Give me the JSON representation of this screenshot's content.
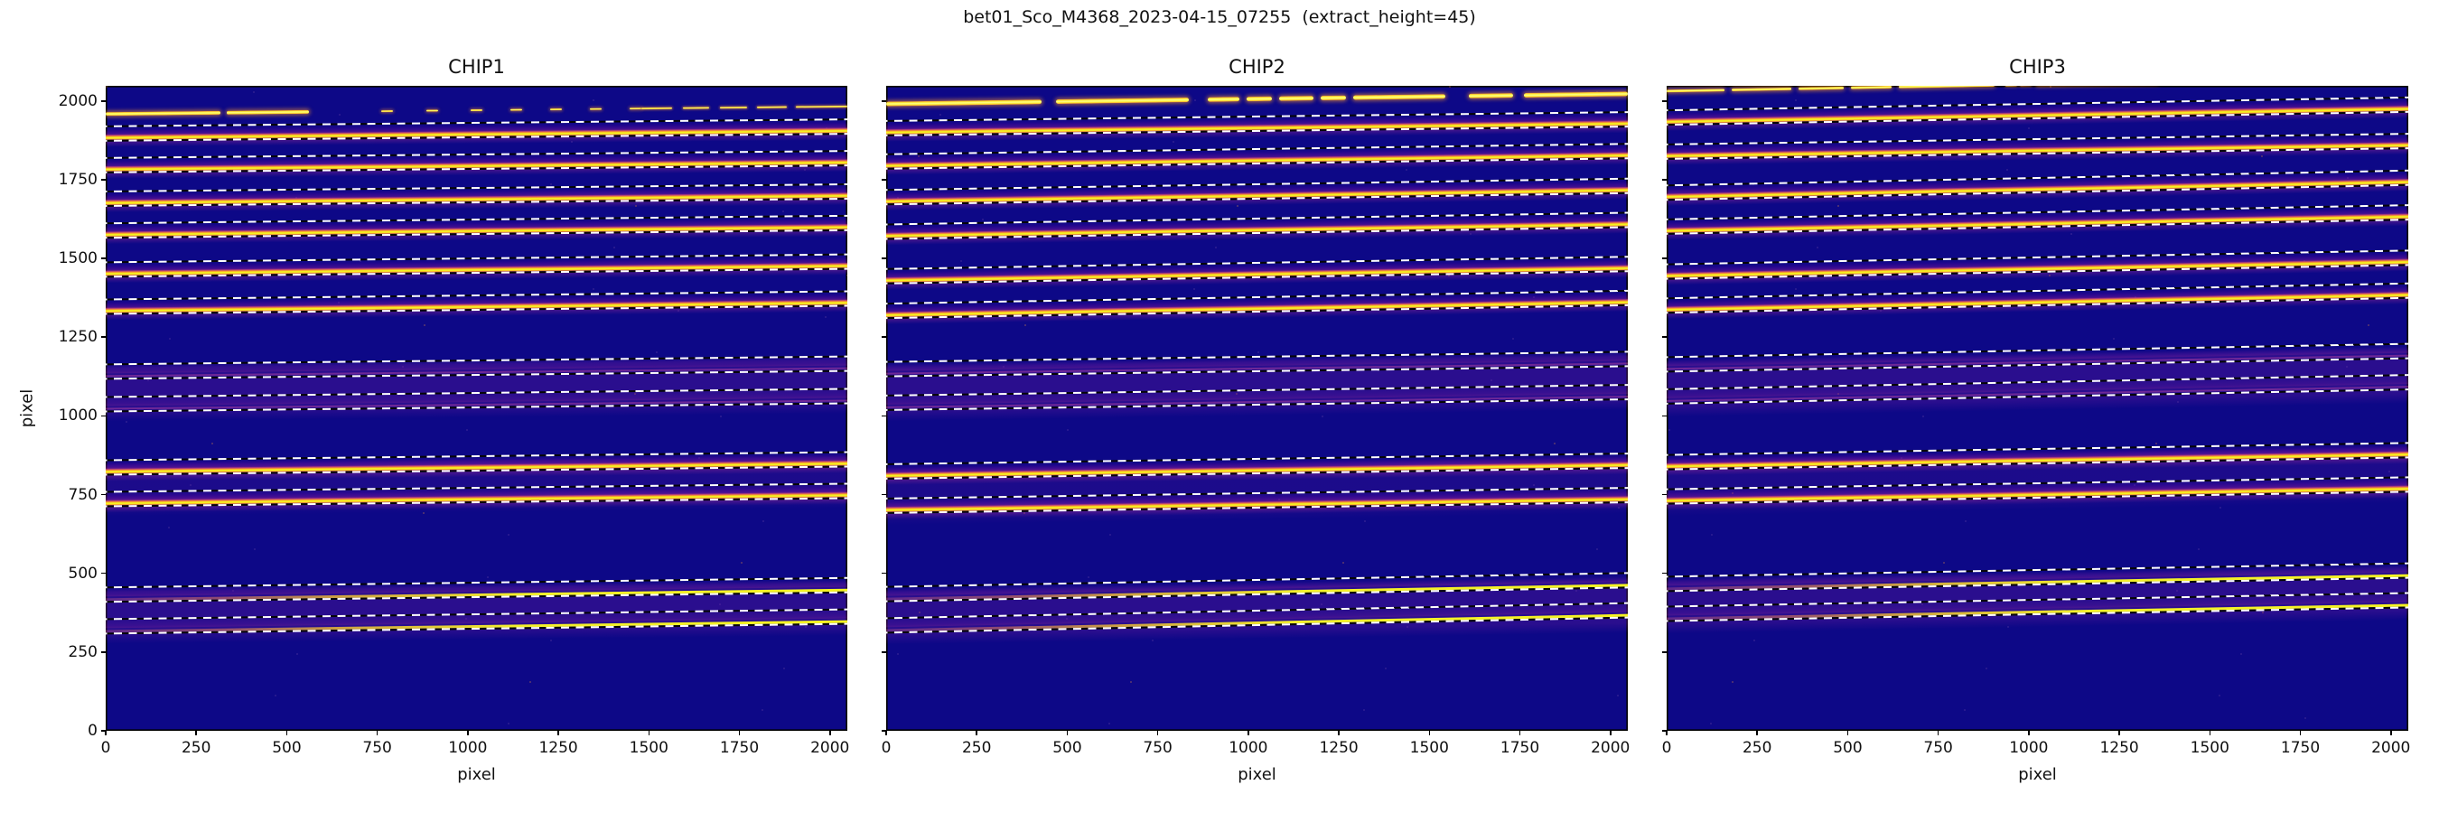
{
  "figure": {
    "title": "bet01_Sco_M4368_2023-04-15_07255  (extract_height=45)"
  },
  "chart_data": {
    "type": "heatmap",
    "description": "Three echelle spectrograph detector frames (2D images, plasma colormap) with traced spectral orders shown as bright solid bands and extraction-window boundaries overplotted as white dashed lines (extract_height = 45 detector pixels).",
    "extract_height": 45,
    "xlabel": "pixel",
    "ylabel": "pixel",
    "xlim": [
      0,
      2048
    ],
    "ylim": [
      0,
      2048
    ],
    "x_ticks": [
      0,
      250,
      500,
      750,
      1000,
      1250,
      1500,
      1750,
      2000
    ],
    "y_ticks": [
      0,
      250,
      500,
      750,
      1000,
      1250,
      1500,
      1750,
      2000
    ],
    "grid": false,
    "legend": null,
    "colors": {
      "background": "#0d0887",
      "scatter_haze": "#6c1c9e",
      "trace_core": "#f4f51e",
      "trace_edge": "#fb9b2d",
      "trace_rim": "#cc4778",
      "dash_white": "#ffffff",
      "dash_black": "#000000",
      "text": "#111111"
    },
    "panels": [
      {
        "title": "CHIP1",
        "show_y_tick_labels": true,
        "top_streak": {
          "y_left": 1958,
          "y_right": 1982,
          "thickness": 12,
          "segments": [
            [
              0,
              318
            ],
            [
              334,
              562
            ]
          ],
          "dots": [
            760,
            886,
            1008,
            1118,
            1228,
            1338,
            1448
          ],
          "thin_segments": [
            [
              1480,
              1564
            ],
            [
              1594,
              1666
            ],
            [
              1696,
              1772
            ],
            [
              1798,
              1882
            ],
            [
              1906,
              2048
            ]
          ]
        },
        "orders": [
          {
            "y_left": 1880,
            "y_right": 1902,
            "type": "bright"
          },
          {
            "y_left": 1780,
            "y_right": 1802,
            "type": "bright"
          },
          {
            "y_left": 1675,
            "y_right": 1698,
            "type": "bright"
          },
          {
            "y_left": 1572,
            "y_right": 1596,
            "type": "bright"
          },
          {
            "y_left": 1450,
            "y_right": 1475,
            "type": "bright"
          },
          {
            "y_left": 1332,
            "y_right": 1358,
            "type": "bright"
          },
          {
            "y_left": 1125,
            "y_right": 1150,
            "type": "faint"
          },
          {
            "y_left": 1020,
            "y_right": 1046,
            "type": "faint"
          },
          {
            "y_left": 820,
            "y_right": 846,
            "type": "bright"
          },
          {
            "y_left": 720,
            "y_right": 746,
            "type": "bright"
          },
          {
            "y_left": 418,
            "y_right": 448,
            "type": "semi"
          },
          {
            "y_left": 315,
            "y_right": 346,
            "type": "semi"
          }
        ],
        "scatter_bands": [
          {
            "y_top": 1178,
            "y_bottom": 995,
            "alpha": 0.3
          },
          {
            "y_top": 868,
            "y_bottom": 694,
            "alpha": 0.16
          },
          {
            "y_top": 468,
            "y_bottom": 290,
            "alpha": 0.3
          }
        ]
      },
      {
        "title": "CHIP2",
        "show_y_tick_labels": false,
        "top_streak": {
          "y_left": 1990,
          "y_right": 2022,
          "thickness": 14,
          "segments": [
            [
              0,
              430
            ],
            [
              470,
              835
            ],
            [
              888,
              975
            ],
            [
              995,
              1065
            ],
            [
              1085,
              1180
            ],
            [
              1200,
              1270
            ],
            [
              1290,
              1545
            ],
            [
              1610,
              1730
            ],
            [
              1760,
              2048
            ]
          ],
          "dots": [],
          "thin_segments": []
        },
        "orders": [
          {
            "y_left": 1899,
            "y_right": 1927,
            "type": "bright"
          },
          {
            "y_left": 1791,
            "y_right": 1824,
            "type": "bright"
          },
          {
            "y_left": 1680,
            "y_right": 1716,
            "type": "bright"
          },
          {
            "y_left": 1568,
            "y_right": 1605,
            "type": "bright"
          },
          {
            "y_left": 1427,
            "y_right": 1466,
            "type": "bright"
          },
          {
            "y_left": 1319,
            "y_right": 1360,
            "type": "bright"
          },
          {
            "y_left": 1132,
            "y_right": 1164,
            "type": "faint"
          },
          {
            "y_left": 1025,
            "y_right": 1059,
            "type": "faint"
          },
          {
            "y_left": 807,
            "y_right": 841,
            "type": "bright"
          },
          {
            "y_left": 698,
            "y_right": 732,
            "type": "bright"
          },
          {
            "y_left": 418,
            "y_right": 462,
            "type": "semi"
          },
          {
            "y_left": 318,
            "y_right": 366,
            "type": "semi"
          }
        ],
        "scatter_bands": [
          {
            "y_top": 1185,
            "y_bottom": 1000,
            "alpha": 0.3
          },
          {
            "y_top": 855,
            "y_bottom": 672,
            "alpha": 0.16
          },
          {
            "y_top": 470,
            "y_bottom": 292,
            "alpha": 0.3
          }
        ]
      },
      {
        "title": "CHIP3",
        "show_y_tick_labels": false,
        "top_streak": {
          "y_left": 2030,
          "y_right": 2072,
          "thickness": 10,
          "segments": [
            [
              0,
              160
            ],
            [
              180,
              345
            ],
            [
              365,
              490
            ],
            [
              510,
              620
            ],
            [
              640,
              905
            ],
            [
              1020,
              1360
            ]
          ],
          "dots": [
            935,
            975,
            1400,
            1440
          ],
          "thin_segments": [
            [
              1460,
              1560
            ]
          ]
        },
        "orders": [
          {
            "y_left": 1932,
            "y_right": 1973,
            "type": "bright"
          },
          {
            "y_left": 1824,
            "y_right": 1858,
            "type": "bright"
          },
          {
            "y_left": 1693,
            "y_right": 1740,
            "type": "bright"
          },
          {
            "y_left": 1585,
            "y_right": 1630,
            "type": "bright"
          },
          {
            "y_left": 1443,
            "y_right": 1487,
            "type": "bright"
          },
          {
            "y_left": 1335,
            "y_right": 1382,
            "type": "bright"
          },
          {
            "y_left": 1148,
            "y_right": 1190,
            "type": "faint"
          },
          {
            "y_left": 1045,
            "y_right": 1090,
            "type": "faint"
          },
          {
            "y_left": 836,
            "y_right": 874,
            "type": "bright"
          },
          {
            "y_left": 728,
            "y_right": 766,
            "type": "bright"
          },
          {
            "y_left": 450,
            "y_right": 492,
            "type": "semi"
          },
          {
            "y_left": 355,
            "y_right": 398,
            "type": "semi"
          }
        ],
        "scatter_bands": [
          {
            "y_top": 1200,
            "y_bottom": 1020,
            "alpha": 0.3
          },
          {
            "y_top": 885,
            "y_bottom": 702,
            "alpha": 0.16
          },
          {
            "y_top": 505,
            "y_bottom": 330,
            "alpha": 0.3
          }
        ]
      }
    ]
  }
}
